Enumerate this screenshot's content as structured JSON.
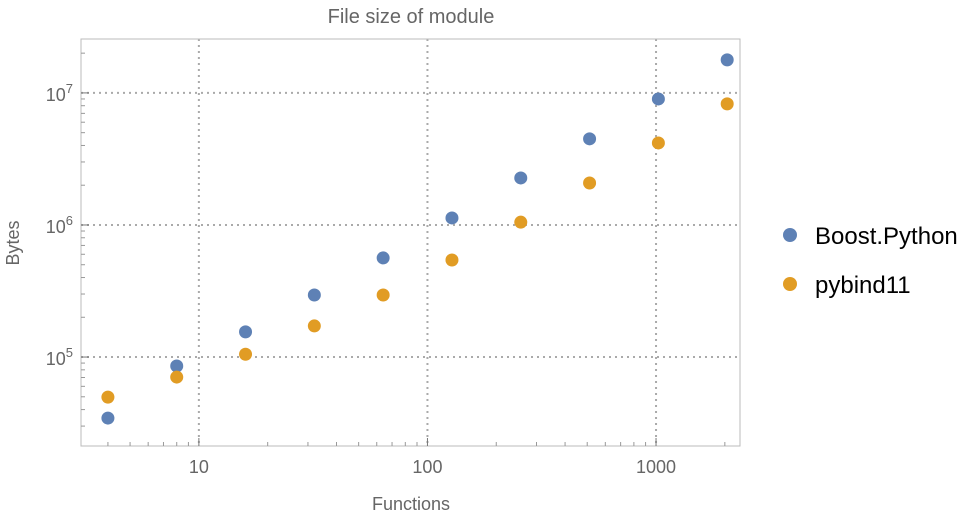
{
  "chart_data": {
    "type": "scatter",
    "title": "File size of module",
    "xlabel": "Functions",
    "ylabel": "Bytes",
    "xscale": "log",
    "yscale": "log",
    "xlim": [
      3.05,
      2330
    ],
    "ylim": [
      21200,
      25600000
    ],
    "grid": true,
    "legend_position": "right",
    "x_ticks": [
      {
        "value": 10,
        "label": "10"
      },
      {
        "value": 100,
        "label": "100"
      },
      {
        "value": 1000,
        "label": "1000"
      }
    ],
    "y_ticks": [
      {
        "value": 100000,
        "base": "10",
        "exp": "5"
      },
      {
        "value": 1000000,
        "base": "10",
        "exp": "6"
      },
      {
        "value": 10000000,
        "base": "10",
        "exp": "7"
      }
    ],
    "x": [
      4,
      8,
      16,
      32,
      64,
      128,
      256,
      512,
      1024,
      2048
    ],
    "series": [
      {
        "name": "Boost.Python",
        "color": "#5E81B5",
        "values": [
          34500,
          85500,
          155000,
          295000,
          563000,
          1130000,
          2270000,
          4490000,
          9000000,
          17800000
        ]
      },
      {
        "name": "pybind11",
        "color": "#E19C24",
        "values": [
          49700,
          70500,
          105000,
          172000,
          295000,
          543000,
          1050000,
          2080000,
          4180000,
          8260000
        ]
      }
    ]
  }
}
